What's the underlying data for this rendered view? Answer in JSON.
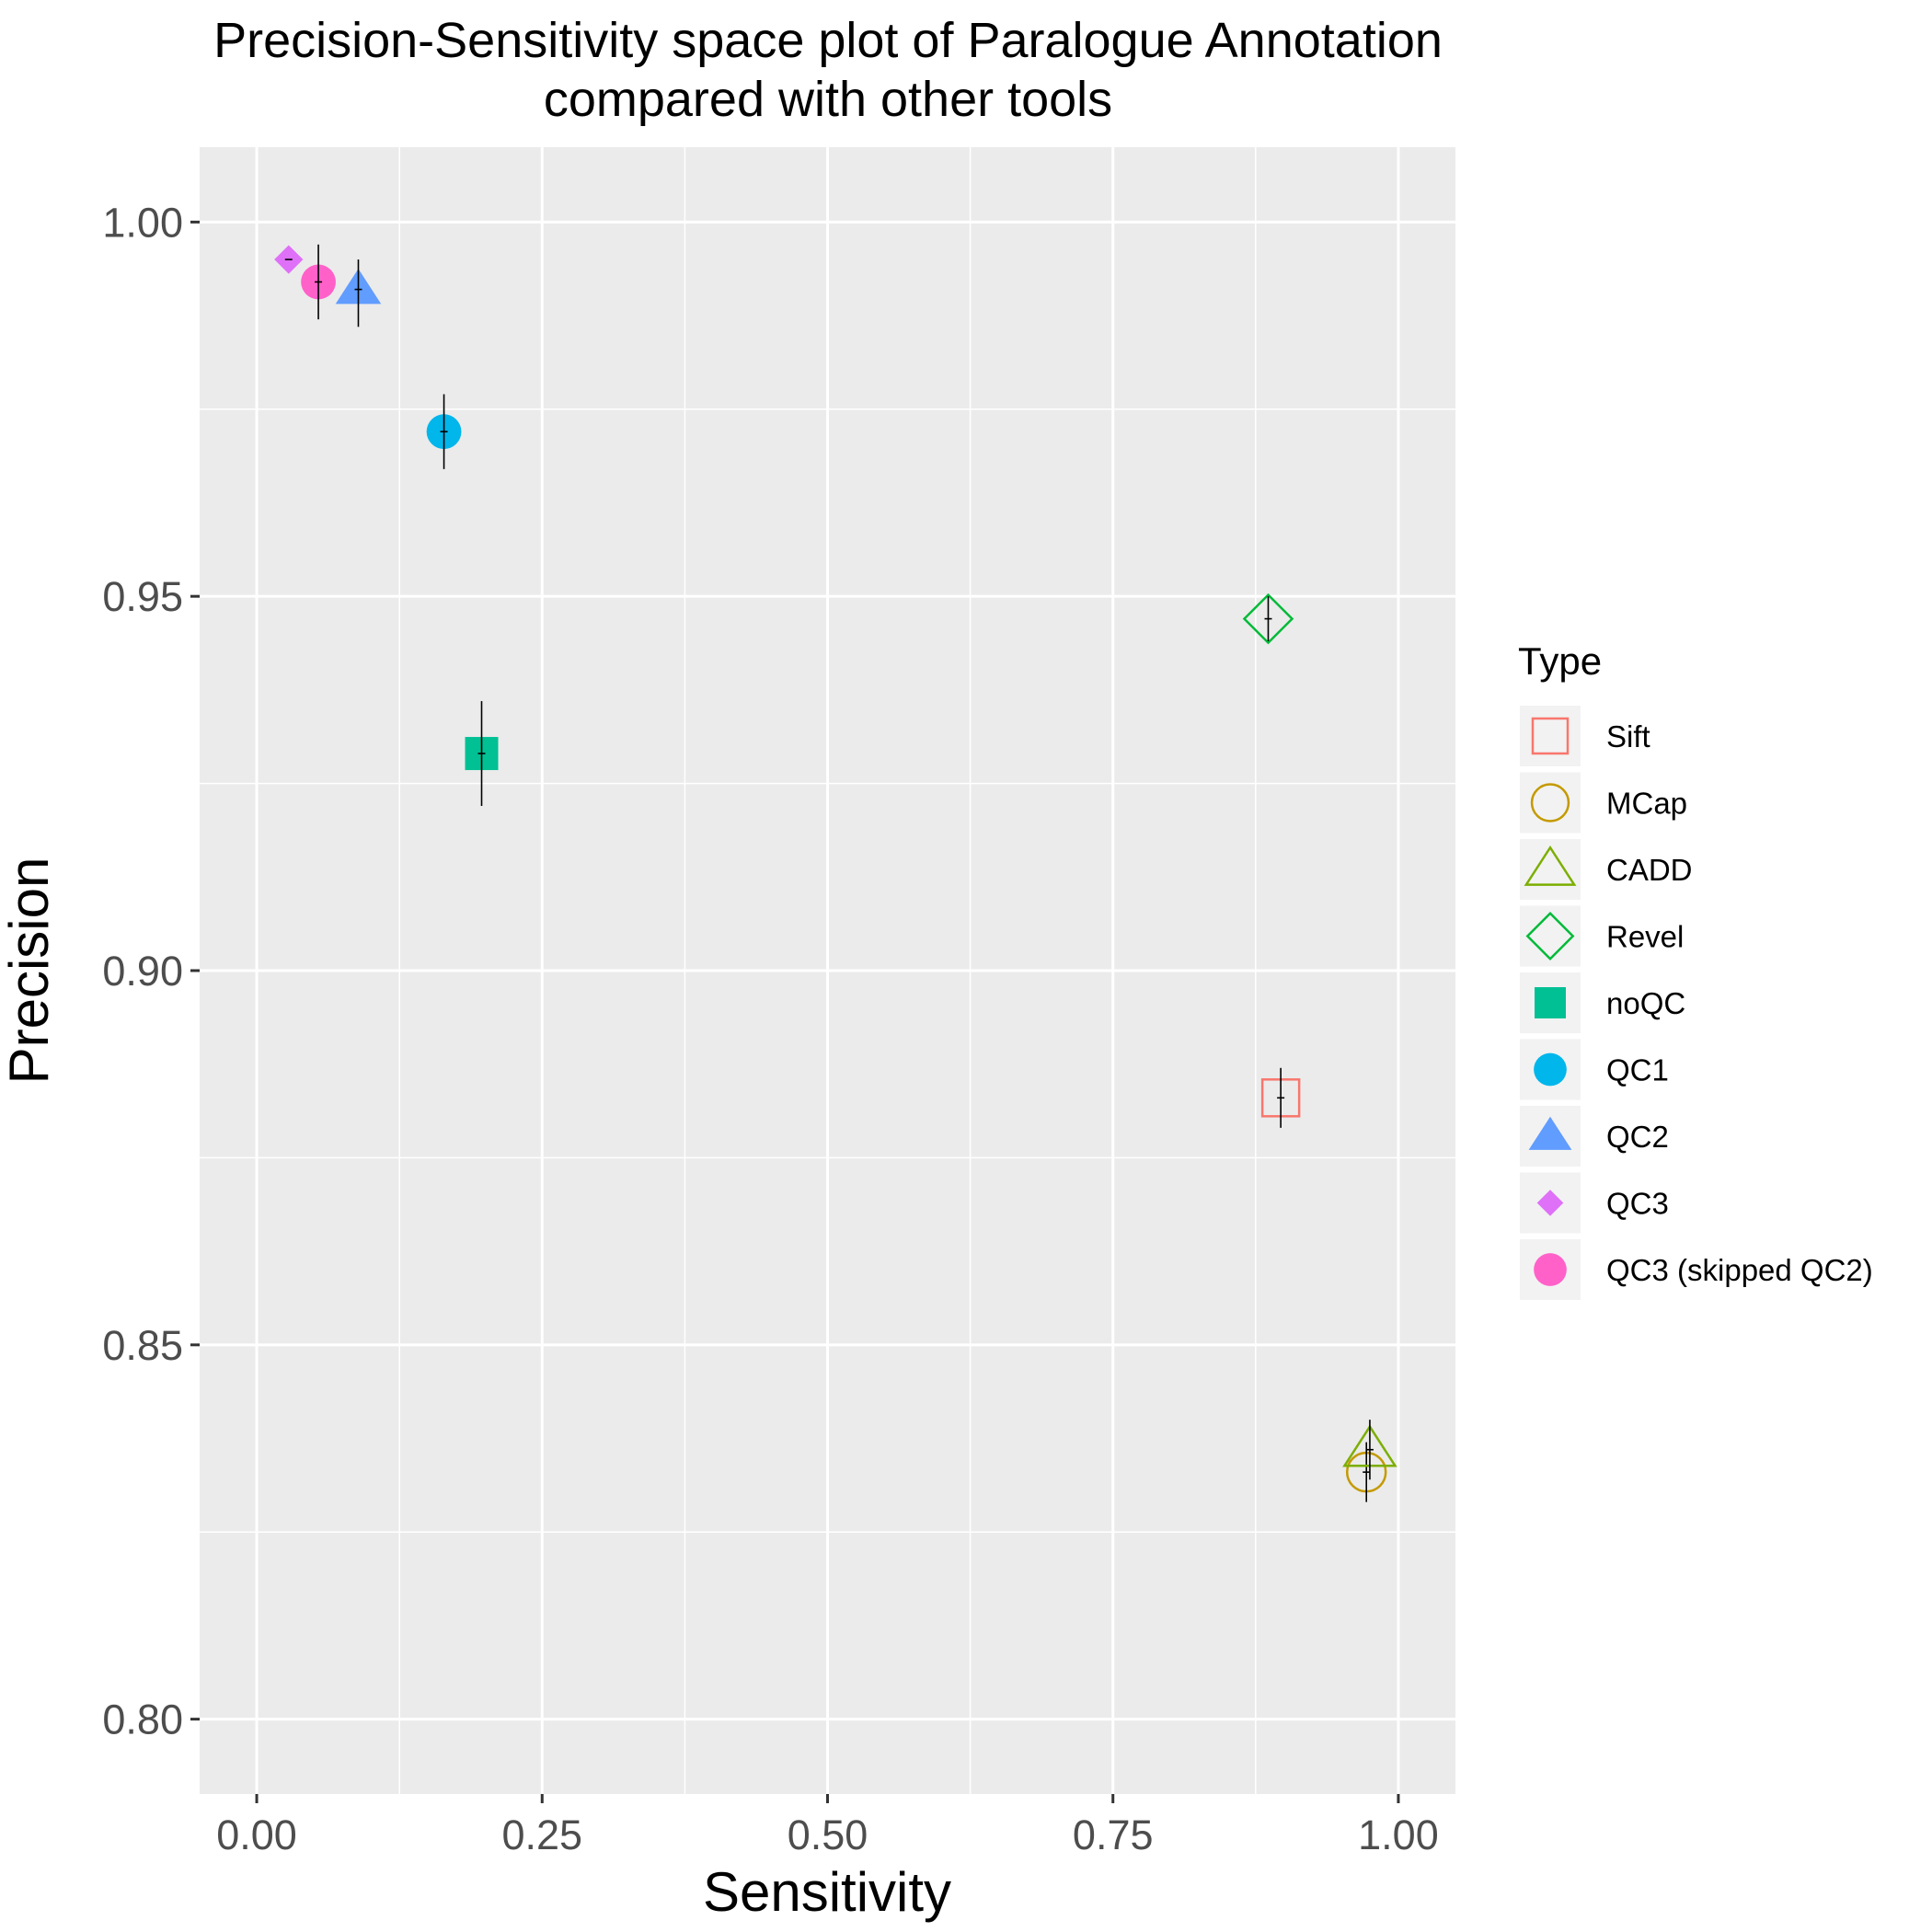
{
  "chart_data": {
    "type": "scatter",
    "title": [
      "Precision-Sensitivity space plot of Paralogue Annotation",
      "compared with other tools"
    ],
    "xlabel": "Sensitivity",
    "ylabel": "Precision",
    "xlim": [
      -0.05,
      1.05
    ],
    "ylim": [
      0.79,
      1.01
    ],
    "x_ticks": [
      0.0,
      0.25,
      0.5,
      0.75,
      1.0
    ],
    "x_tick_labels": [
      "0.00",
      "0.25",
      "0.50",
      "0.75",
      "1.00"
    ],
    "y_ticks": [
      0.8,
      0.85,
      0.9,
      0.95,
      1.0
    ],
    "y_tick_labels": [
      "0.80",
      "0.85",
      "0.90",
      "0.95",
      "1.00"
    ],
    "grid": true,
    "legend_position": "right",
    "legend_title": "Type",
    "series": [
      {
        "name": "Sift",
        "shape": "square-open",
        "color": "#F8766D",
        "x": 0.897,
        "y": 0.883,
        "ymin": 0.879,
        "ymax": 0.887
      },
      {
        "name": "MCap",
        "shape": "circle-open",
        "color": "#C49A00",
        "x": 0.972,
        "y": 0.833,
        "ymin": 0.829,
        "ymax": 0.837
      },
      {
        "name": "CADD",
        "shape": "triangle-open",
        "color": "#7CAE00",
        "x": 0.975,
        "y": 0.836,
        "ymin": 0.832,
        "ymax": 0.84
      },
      {
        "name": "Revel",
        "shape": "diamond-open",
        "color": "#00BA38",
        "x": 0.886,
        "y": 0.947,
        "ymin": 0.944,
        "ymax": 0.95
      },
      {
        "name": "noQC",
        "shape": "square",
        "color": "#00C094",
        "x": 0.197,
        "y": 0.929,
        "ymin": 0.922,
        "ymax": 0.936
      },
      {
        "name": "QC1",
        "shape": "circle",
        "color": "#00B6EB",
        "x": 0.164,
        "y": 0.972,
        "ymin": 0.967,
        "ymax": 0.977
      },
      {
        "name": "QC2",
        "shape": "triangle",
        "color": "#619CFF",
        "x": 0.089,
        "y": 0.991,
        "ymin": 0.986,
        "ymax": 0.995
      },
      {
        "name": "QC3",
        "shape": "diamond",
        "color": "#DF70F8",
        "x": 0.028,
        "y": 0.995,
        "ymin": 0.995,
        "ymax": 0.995
      },
      {
        "name": "QC3 (skipped QC2)",
        "shape": "circle",
        "color": "#FF61C9",
        "x": 0.054,
        "y": 0.992,
        "ymin": 0.987,
        "ymax": 0.997
      }
    ]
  }
}
